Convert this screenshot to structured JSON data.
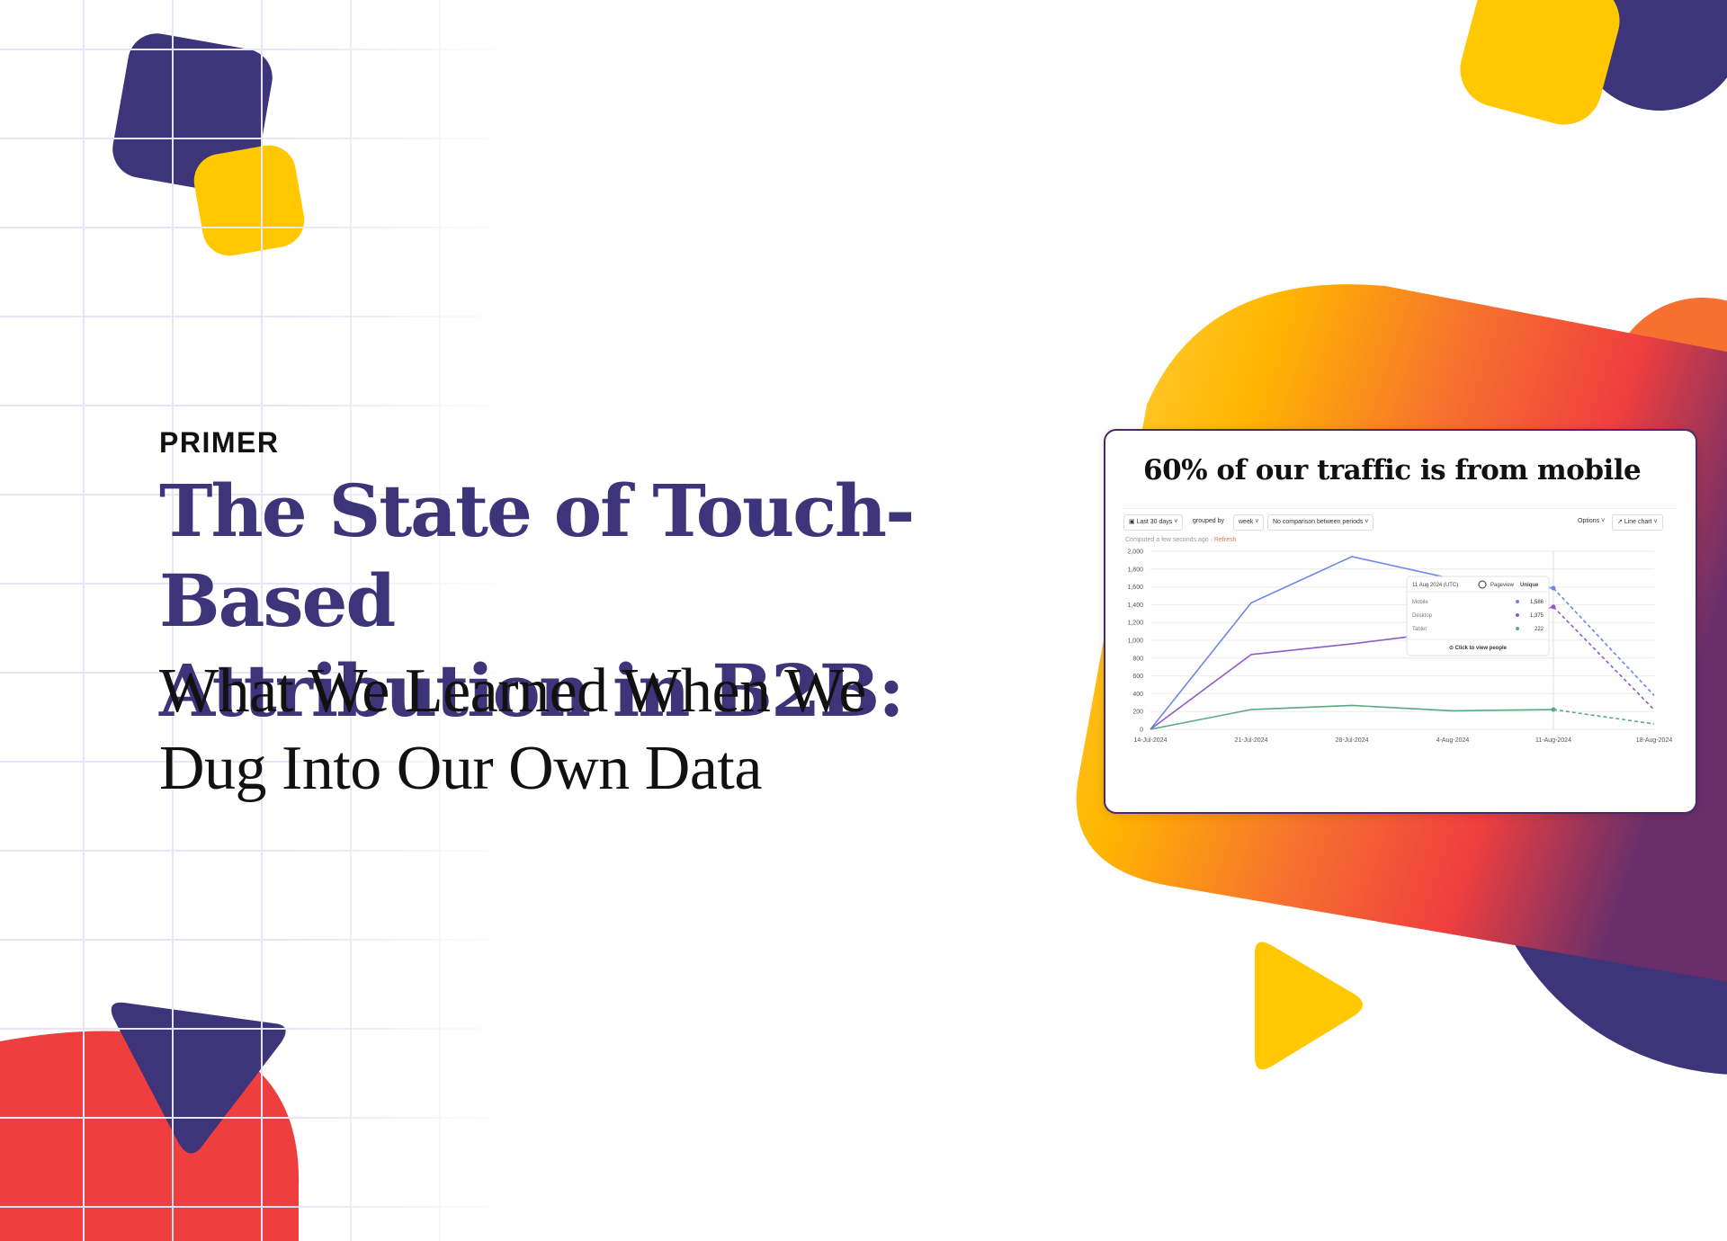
{
  "brand": {
    "name": "PRIMER"
  },
  "headline": {
    "line1": "The State of Touch-Based",
    "line2": "Attribution in B2B:",
    "sub_line1": "What We Learned When We",
    "sub_line2": "Dug Into Our Own Data"
  },
  "colors": {
    "purple": "#3d3479",
    "yellow": "#ffc800",
    "red": "#ef3e3e",
    "orange": "#f6702f"
  },
  "card": {
    "title": "60% of our traffic is from mobile",
    "toolbar": {
      "date_range": "Last 30 days",
      "grouped_by_label": "grouped by",
      "interval": "week",
      "comparison": "No comparison between periods",
      "options": "Options",
      "chart_type": "Line chart"
    },
    "computed": "Computed a few seconds ago",
    "refresh": "Refresh",
    "tooltip": {
      "date": "11 Aug 2024 (UTC)",
      "metric": "Pageview",
      "mode": "Unique",
      "rows": [
        {
          "label": "Mobile",
          "value": "1,586"
        },
        {
          "label": "Desktop",
          "value": "1,375"
        },
        {
          "label": "Tablet",
          "value": "222"
        }
      ],
      "cta": "Click to view people"
    }
  },
  "chart_data": {
    "type": "line",
    "title": "60% of our traffic is from mobile",
    "x": [
      "14-Jul-2024",
      "21-Jul-2024",
      "28-Jul-2024",
      "4-Aug-2024",
      "11-Aug-2024",
      "18-Aug-2024"
    ],
    "y_ticks": [
      0,
      200,
      400,
      600,
      800,
      1000,
      1200,
      1400,
      1600,
      1800,
      2000
    ],
    "y_tick_labels": [
      "0",
      "200",
      "400",
      "600",
      "800",
      "1,000",
      "1,200",
      "1,400",
      "1,600",
      "1,800",
      "2,000"
    ],
    "ylim": [
      0,
      2000
    ],
    "grid": true,
    "series": [
      {
        "name": "Mobile",
        "color": "#6f86e8",
        "values": [
          0,
          1420,
          1940,
          1690,
          1586,
          380
        ],
        "dashed_from_index": 4
      },
      {
        "name": "Desktop",
        "color": "#8e5cc9",
        "values": [
          0,
          840,
          960,
          1100,
          1375,
          220
        ],
        "dashed_from_index": 4
      },
      {
        "name": "Tablet",
        "color": "#5aa885",
        "values": [
          0,
          222,
          268,
          208,
          222,
          60
        ],
        "dashed_from_index": 4
      }
    ]
  }
}
